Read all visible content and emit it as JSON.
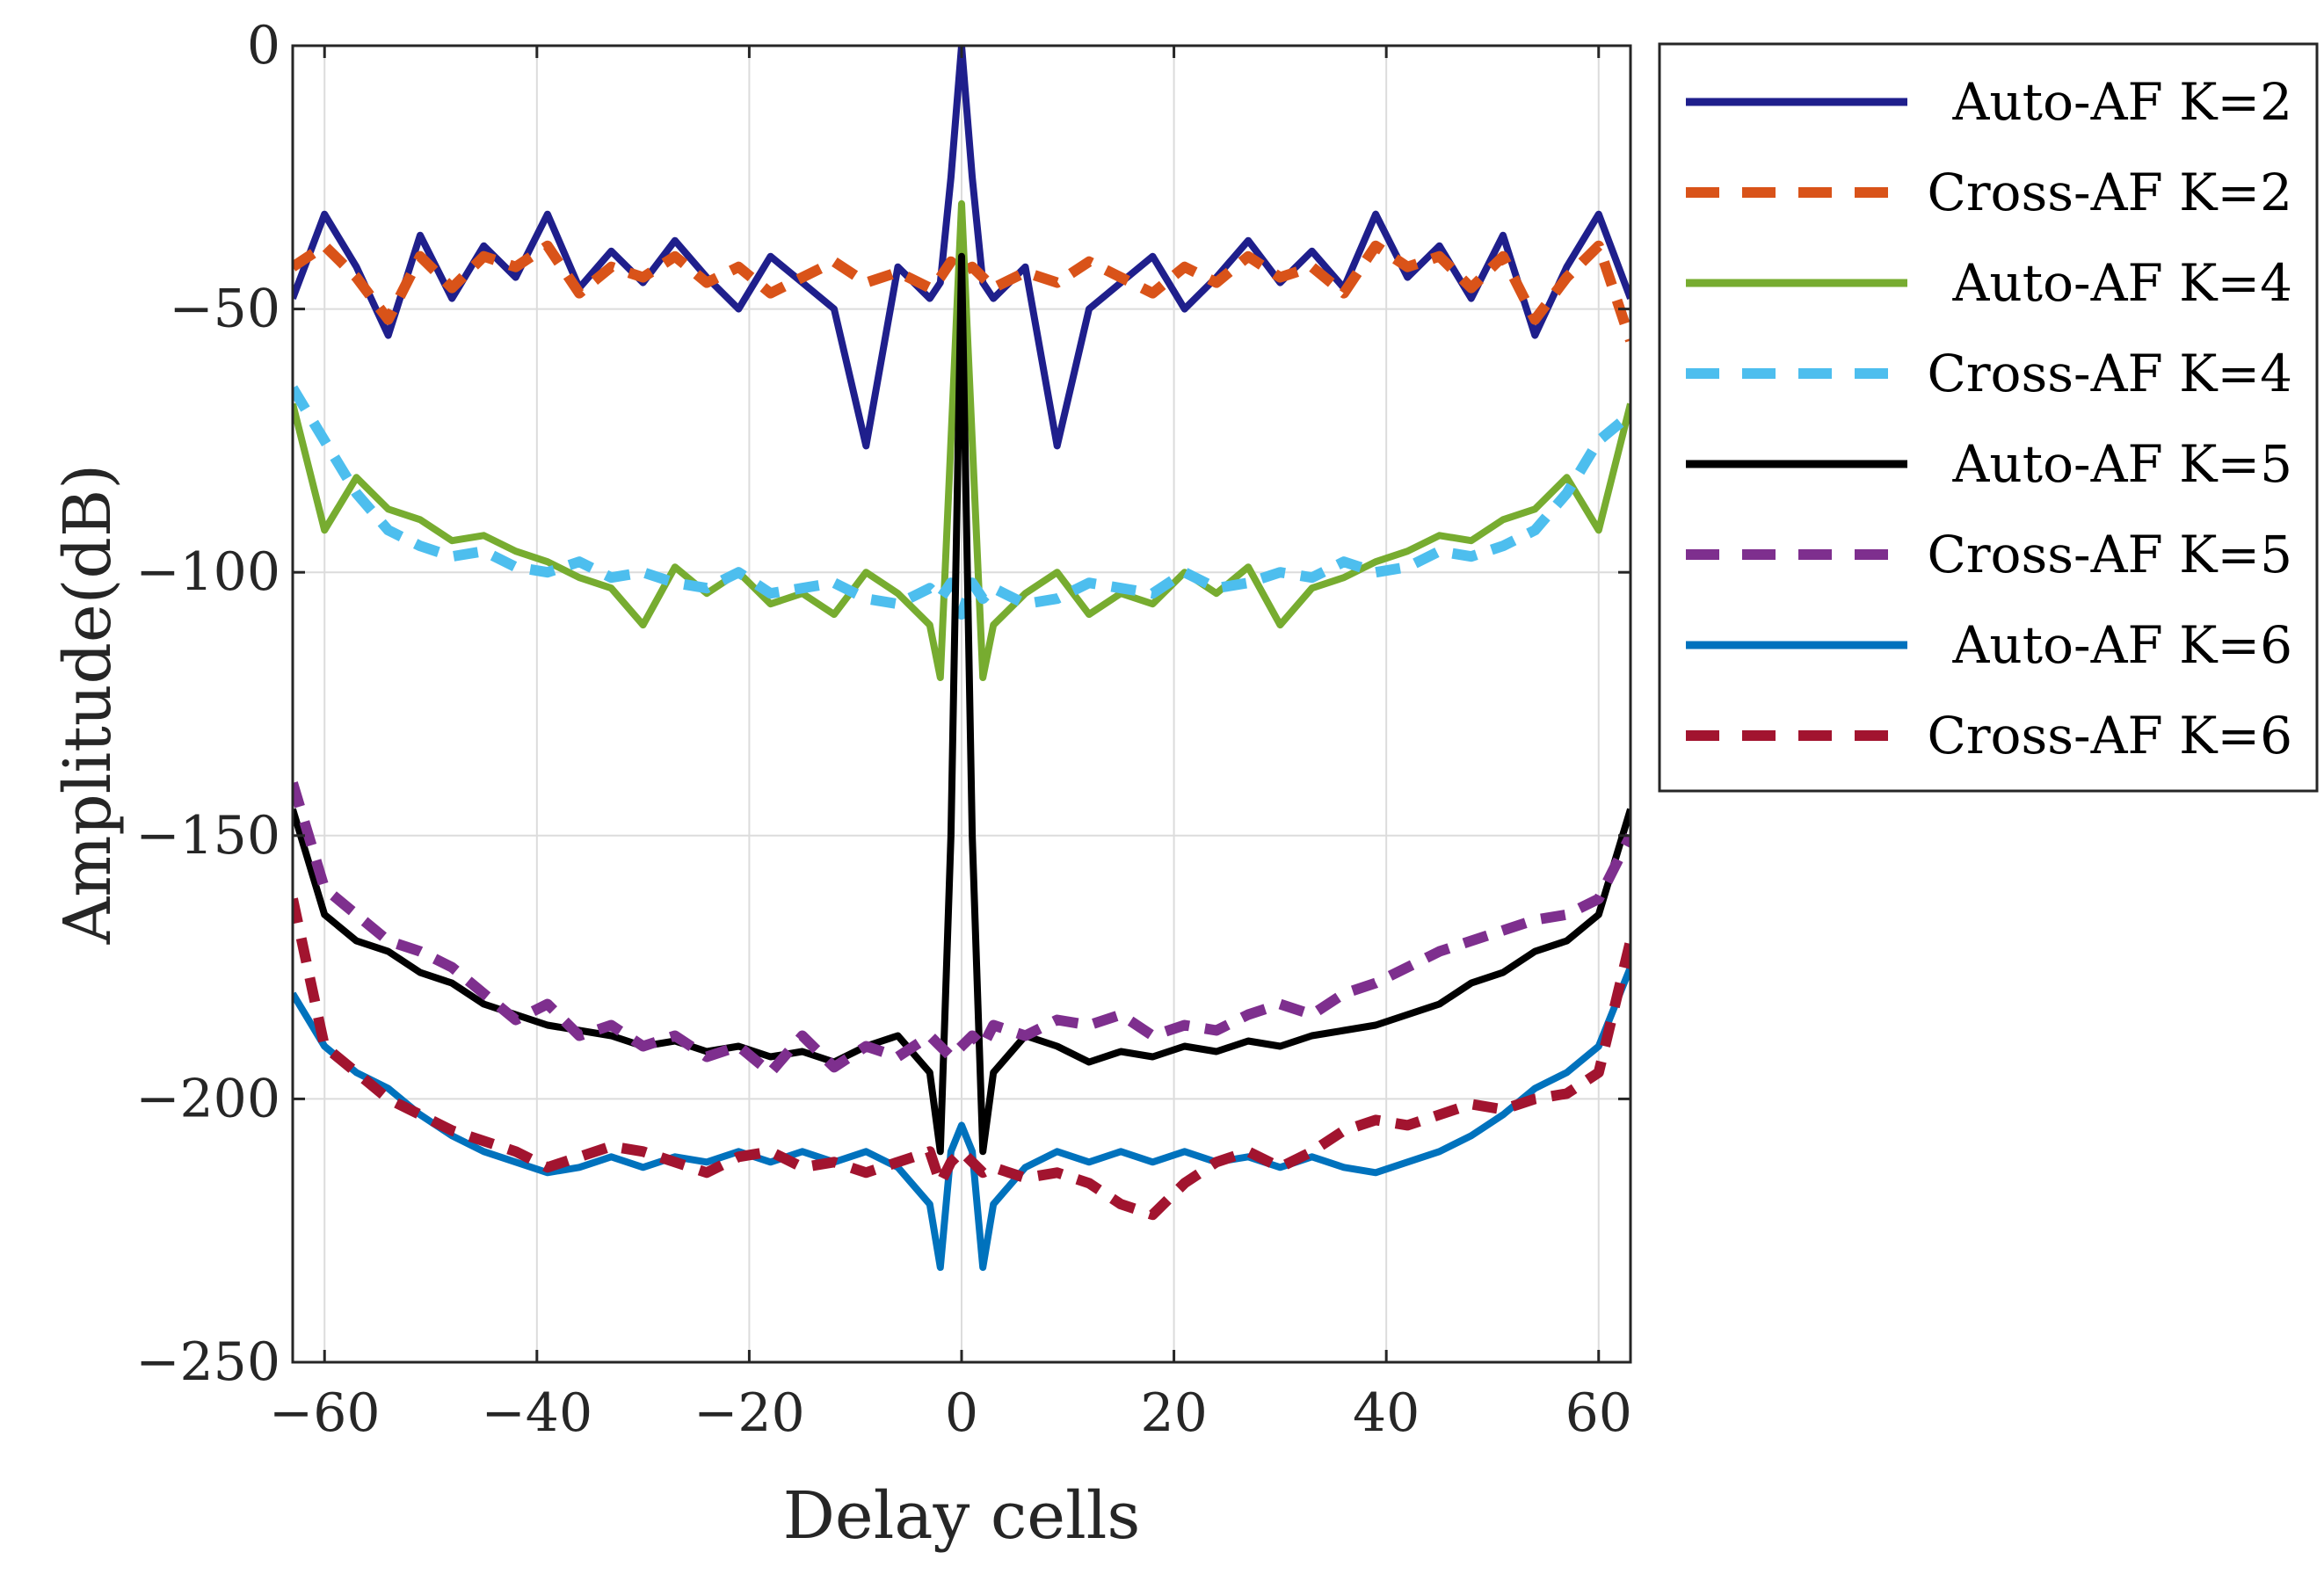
{
  "chart_data": {
    "type": "line",
    "xlabel": "Delay cells",
    "ylabel": "Amplitude(dB)",
    "xlim": [
      -63,
      63
    ],
    "ylim": [
      -250,
      0
    ],
    "xticks": [
      -60,
      -40,
      -20,
      0,
      20,
      40,
      60
    ],
    "yticks": [
      0,
      -50,
      -100,
      -150,
      -200,
      -250
    ],
    "xtick_labels": [
      "−60",
      "−40",
      "−20",
      "0",
      "20",
      "40",
      "60"
    ],
    "ytick_labels": [
      "0",
      "−50",
      "−100",
      "−150",
      "−200",
      "−250"
    ],
    "grid": true,
    "legend_position": "outside-right-top",
    "x": [
      -63,
      -60,
      -57,
      -54,
      -51,
      -48,
      -45,
      -42,
      -39,
      -36,
      -33,
      -30,
      -27,
      -24,
      -21,
      -18,
      -15,
      -12,
      -9,
      -6,
      -3,
      -2,
      -1,
      0,
      1,
      2,
      3,
      6,
      9,
      12,
      15,
      18,
      21,
      24,
      27,
      30,
      33,
      36,
      39,
      42,
      45,
      48,
      51,
      54,
      57,
      60,
      63
    ],
    "series": [
      {
        "name": "Auto-AF K=2",
        "color": "#1f1f8c",
        "dash": "solid",
        "values": [
          -48,
          -32,
          -42,
          -55,
          -36,
          -48,
          -38,
          -44,
          -32,
          -46,
          -39,
          -45,
          -37,
          -44,
          -50,
          -40,
          -45,
          -50,
          -76,
          -42,
          -48,
          -45,
          -25,
          0,
          -25,
          -45,
          -48,
          -42,
          -76,
          -50,
          -45,
          -40,
          -50,
          -44,
          -37,
          -45,
          -39,
          -46,
          -32,
          -44,
          -38,
          -48,
          -36,
          -55,
          -42,
          -32,
          -48
        ]
      },
      {
        "name": "Cross-AF K=2",
        "color": "#d95319",
        "dash": "dashed",
        "values": [
          -42,
          -38,
          -44,
          -52,
          -40,
          -46,
          -40,
          -42,
          -38,
          -47,
          -42,
          -44,
          -40,
          -45,
          -42,
          -47,
          -44,
          -41,
          -45,
          -43,
          -46,
          -44,
          -41,
          -43,
          -42,
          -44,
          -46,
          -43,
          -45,
          -41,
          -44,
          -47,
          -42,
          -45,
          -40,
          -44,
          -42,
          -47,
          -38,
          -42,
          -40,
          -46,
          -40,
          -52,
          -44,
          -38,
          -56
        ]
      },
      {
        "name": "Auto-AF K=4",
        "color": "#77ac30",
        "dash": "solid",
        "values": [
          -68,
          -92,
          -82,
          -88,
          -90,
          -94,
          -93,
          -96,
          -98,
          -101,
          -103,
          -110,
          -99,
          -104,
          -100,
          -106,
          -104,
          -108,
          -100,
          -104,
          -110,
          -120,
          -75,
          -30,
          -75,
          -120,
          -110,
          -104,
          -100,
          -108,
          -104,
          -106,
          -100,
          -104,
          -99,
          -110,
          -103,
          -101,
          -98,
          -96,
          -93,
          -94,
          -90,
          -88,
          -82,
          -92,
          -68
        ]
      },
      {
        "name": "Cross-AF K=4",
        "color": "#4dbeee",
        "dash": "dashed",
        "values": [
          -65,
          -75,
          -85,
          -92,
          -95,
          -97,
          -96,
          -99,
          -100,
          -98,
          -101,
          -100,
          -102,
          -103,
          -100,
          -104,
          -103,
          -102,
          -105,
          -106,
          -103,
          -105,
          -102,
          -108,
          -102,
          -105,
          -103,
          -106,
          -105,
          -102,
          -103,
          -104,
          -100,
          -103,
          -102,
          -100,
          -101,
          -98,
          -100,
          -99,
          -96,
          -97,
          -95,
          -92,
          -85,
          -75,
          -70
        ]
      },
      {
        "name": "Auto-AF K=5",
        "color": "#000000",
        "dash": "solid",
        "values": [
          -145,
          -165,
          -170,
          -172,
          -176,
          -178,
          -182,
          -184,
          -186,
          -187,
          -188,
          -190,
          -189,
          -191,
          -190,
          -192,
          -191,
          -193,
          -190,
          -188,
          -195,
          -210,
          -150,
          -40,
          -150,
          -210,
          -195,
          -188,
          -190,
          -193,
          -191,
          -192,
          -190,
          -191,
          -189,
          -190,
          -188,
          -187,
          -186,
          -184,
          -182,
          -178,
          -176,
          -172,
          -170,
          -165,
          -145
        ]
      },
      {
        "name": "Cross-AF K=5",
        "color": "#7e2f8e",
        "dash": "dashed",
        "values": [
          -140,
          -160,
          -165,
          -170,
          -172,
          -175,
          -180,
          -185,
          -182,
          -188,
          -186,
          -190,
          -188,
          -192,
          -190,
          -195,
          -188,
          -194,
          -190,
          -192,
          -188,
          -190,
          -192,
          -190,
          -188,
          -190,
          -186,
          -188,
          -185,
          -186,
          -184,
          -188,
          -186,
          -187,
          -184,
          -182,
          -184,
          -180,
          -178,
          -175,
          -172,
          -170,
          -168,
          -166,
          -165,
          -162,
          -150
        ]
      },
      {
        "name": "Auto-AF K=6",
        "color": "#0072bd",
        "dash": "solid",
        "values": [
          -180,
          -190,
          -195,
          -198,
          -203,
          -207,
          -210,
          -212,
          -214,
          -213,
          -211,
          -213,
          -211,
          -212,
          -210,
          -212,
          -210,
          -212,
          -210,
          -213,
          -220,
          -232,
          -210,
          -205,
          -210,
          -232,
          -220,
          -213,
          -210,
          -212,
          -210,
          -212,
          -210,
          -212,
          -211,
          -213,
          -211,
          -213,
          -214,
          -212,
          -210,
          -207,
          -203,
          -198,
          -195,
          -190,
          -175
        ]
      },
      {
        "name": "Cross-AF K=6",
        "color": "#a2142f",
        "dash": "dashed",
        "values": [
          -162,
          -190,
          -195,
          -200,
          -203,
          -206,
          -208,
          -210,
          -213,
          -211,
          -209,
          -210,
          -212,
          -214,
          -211,
          -210,
          -213,
          -212,
          -214,
          -212,
          -210,
          -216,
          -212,
          -210,
          -212,
          -214,
          -213,
          -215,
          -214,
          -216,
          -220,
          -222,
          -216,
          -212,
          -210,
          -213,
          -210,
          -206,
          -204,
          -205,
          -203,
          -201,
          -202,
          -200,
          -199,
          -195,
          -170
        ]
      }
    ]
  }
}
